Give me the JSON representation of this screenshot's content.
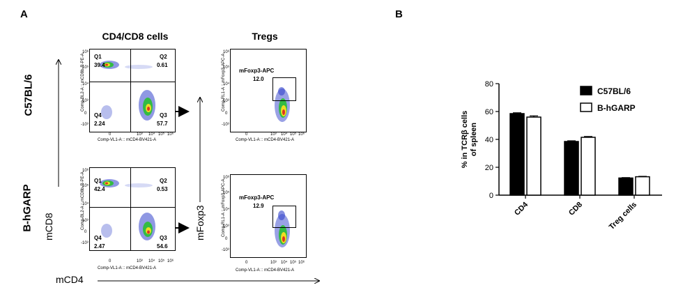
{
  "panel_a": {
    "letter": "A",
    "col_titles": [
      "CD4/CD8 cells",
      "Tregs"
    ],
    "row_labels": [
      "C57BL/6",
      "B-hGARP"
    ],
    "y_axis_cd8": "mCD8",
    "y_axis_foxp3": "mFoxp3",
    "x_axis": "mCD4",
    "plot_x_label": "Comp-VL1-A :: mCD4-BV421-A",
    "plot_y_label_cd8": "Comp-BL2-A :: mCD8b-R-PE-A",
    "plot_y_label_foxp3": "Comp-RL1-A :: mFoxp3-APC-A",
    "gate_name": "mFoxp3-APC",
    "y_ticks": [
      "10⁶",
      "10⁵",
      "10⁴",
      "10³",
      "0",
      "-10³"
    ],
    "x_ticks": [
      "0",
      "10³",
      "10⁴",
      "10⁵",
      "10⁶"
    ],
    "rows": [
      {
        "quadrants": {
          "q1": "Q1",
          "q1_value": "39.4",
          "q2": "Q2",
          "q2_value": "0.61",
          "q3": "Q3",
          "q3_value": "57.7",
          "q4": "Q4",
          "q4_value": "2.24"
        },
        "treg_value": "12.0"
      },
      {
        "quadrants": {
          "q1": "Q1",
          "q1_value": "42.4",
          "q2": "Q2",
          "q2_value": "0.53",
          "q3": "Q3",
          "q3_value": "54.6",
          "q4": "Q4",
          "q4_value": "2.47"
        },
        "treg_value": "12.9"
      }
    ]
  },
  "panel_b": {
    "letter": "B"
  },
  "chart_data": {
    "type": "bar",
    "categories": [
      "CD4",
      "CD8",
      "Treg cells"
    ],
    "series": [
      {
        "name": "C57BL/6",
        "values": [
          58.5,
          38.5,
          12.3
        ],
        "errors": [
          0.6,
          0.5,
          0.3
        ],
        "color": "#000000"
      },
      {
        "name": "B-hGARP",
        "values": [
          56.0,
          41.5,
          13.2
        ],
        "errors": [
          0.9,
          0.6,
          0.3
        ],
        "color": "#ffffff"
      }
    ],
    "ylabel_line1": "% in TCRβ cells",
    "ylabel_line2": "of spleen",
    "ylim": [
      0,
      80
    ],
    "yticks": [
      "0",
      "20",
      "40",
      "60",
      "80"
    ],
    "legend_position": "top-right",
    "grid": false
  }
}
